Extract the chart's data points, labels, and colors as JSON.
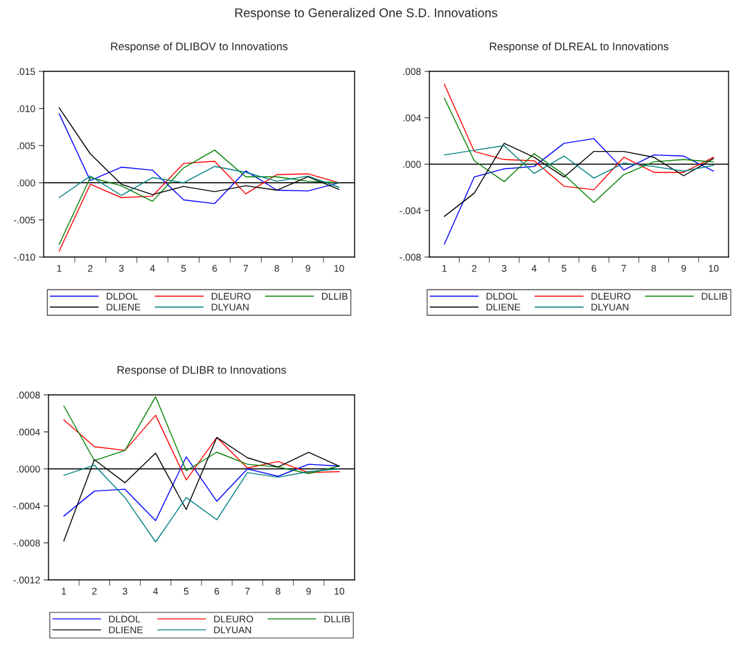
{
  "chart_data": [
    {
      "type": "line",
      "title": "Response of DLIBOV to Innovations",
      "categories": [
        "1",
        "2",
        "3",
        "4",
        "5",
        "6",
        "7",
        "8",
        "9",
        "10"
      ],
      "series": [
        {
          "name": "DLDOL",
          "color": "#0000ff",
          "values": [
            0.0093,
            0.0003,
            0.0021,
            0.0017,
            -0.0023,
            -0.0028,
            0.0016,
            -0.001,
            -0.0011,
            0.0
          ]
        },
        {
          "name": "DLEURO",
          "color": "#ff0000",
          "values": [
            -0.0092,
            -0.0002,
            -0.002,
            -0.0018,
            0.0026,
            0.0029,
            -0.0015,
            0.0011,
            0.0012,
            0.0
          ]
        },
        {
          "name": "DLLIB",
          "color": "#008000",
          "values": [
            -0.0083,
            0.0007,
            -0.0004,
            -0.0025,
            0.002,
            0.0044,
            0.0008,
            0.0008,
            0.0002,
            0.0
          ]
        },
        {
          "name": "DLIENE",
          "color": "#000000",
          "values": [
            0.0101,
            0.0039,
            -0.0002,
            -0.0016,
            -0.0005,
            -0.0012,
            -0.0004,
            -0.001,
            0.0008,
            -0.0009
          ]
        },
        {
          "name": "DLYUAN",
          "color": "#008080",
          "values": [
            -0.002,
            0.0009,
            -0.0017,
            0.0007,
            0.0,
            0.0022,
            0.0014,
            0.0002,
            0.0009,
            -0.0006
          ]
        }
      ],
      "ylim": [
        -0.01,
        0.015
      ],
      "yticks": [
        {
          "value": -0.01,
          "label": "-.010"
        },
        {
          "value": -0.005,
          "label": "-.005"
        },
        {
          "value": 0.0,
          "label": ".000"
        },
        {
          "value": 0.005,
          "label": ".005"
        },
        {
          "value": 0.01,
          "label": ".010"
        },
        {
          "value": 0.015,
          "label": ".015"
        }
      ],
      "ref_lines": [
        {
          "axis": "y",
          "value": 0.0,
          "color": "#000000"
        }
      ],
      "annotations": [
        "Response to Generalized One S.D. Innovations"
      ],
      "grid": false,
      "legend": "bottom",
      "marker": "none",
      "line_style": "solid"
    },
    {
      "type": "line",
      "title": "Response of DLREAL to Innovations",
      "categories": [
        "1",
        "2",
        "3",
        "4",
        "5",
        "6",
        "7",
        "8",
        "9",
        "10"
      ],
      "series": [
        {
          "name": "DLDOL",
          "color": "#0000ff",
          "values": [
            -0.0069,
            -0.0011,
            -0.0004,
            -0.0002,
            0.0018,
            0.0022,
            -0.0005,
            0.0008,
            0.0007,
            -0.0006
          ]
        },
        {
          "name": "DLEURO",
          "color": "#ff0000",
          "values": [
            0.0069,
            0.0011,
            0.0004,
            0.0003,
            -0.0019,
            -0.0022,
            0.0006,
            -0.0007,
            -0.0007,
            0.0006
          ]
        },
        {
          "name": "DLLIB",
          "color": "#008000",
          "values": [
            0.0057,
            0.0003,
            -0.0015,
            0.0009,
            -0.0009,
            -0.0033,
            -0.0009,
            0.0002,
            0.0004,
            0.0002
          ]
        },
        {
          "name": "DLIENE",
          "color": "#000000",
          "values": [
            -0.0045,
            -0.0025,
            0.0018,
            0.0006,
            -0.0011,
            0.0011,
            0.0011,
            0.0006,
            -0.001,
            0.0005
          ]
        },
        {
          "name": "DLYUAN",
          "color": "#008080",
          "values": [
            0.0008,
            0.0012,
            0.0016,
            -0.0008,
            0.0007,
            -0.0012,
            0.0001,
            -0.0002,
            -0.0006,
            -0.0001
          ]
        }
      ],
      "ylim": [
        -0.008,
        0.008
      ],
      "yticks": [
        {
          "value": -0.008,
          "label": "-.008"
        },
        {
          "value": -0.004,
          "label": "-.004"
        },
        {
          "value": 0.0,
          "label": ".000"
        },
        {
          "value": 0.004,
          "label": ".004"
        },
        {
          "value": 0.008,
          "label": ".008"
        }
      ],
      "ref_lines": [
        {
          "axis": "y",
          "value": 0.0,
          "color": "#000000"
        }
      ],
      "grid": false,
      "legend": "bottom",
      "marker": "none",
      "line_style": "solid"
    },
    {
      "type": "line",
      "title": "Response of DLIBR to Innovations",
      "categories": [
        "1",
        "2",
        "3",
        "4",
        "5",
        "6",
        "7",
        "8",
        "9",
        "10"
      ],
      "series": [
        {
          "name": "DLDOL",
          "color": "#0000ff",
          "values": [
            -0.00051,
            -0.00024,
            -0.00022,
            -0.00056,
            0.00013,
            -0.00035,
            0.0,
            -8e-05,
            5e-05,
            3e-05
          ]
        },
        {
          "name": "DLEURO",
          "color": "#ff0000",
          "values": [
            0.00053,
            0.00024,
            0.0002,
            0.00058,
            -0.00012,
            0.00034,
            1e-05,
            8e-05,
            -4e-05,
            -3e-05
          ]
        },
        {
          "name": "DLLIB",
          "color": "#008000",
          "values": [
            0.00068,
            9e-05,
            0.0002,
            0.00078,
            -2e-05,
            0.00018,
            5e-05,
            2e-05,
            -5e-05,
            3e-05
          ]
        },
        {
          "name": "DLIENE",
          "color": "#000000",
          "values": [
            -0.00078,
            0.0001,
            -0.00015,
            0.00017,
            -0.00044,
            0.00034,
            0.00012,
            2e-05,
            0.00018,
            3e-05
          ]
        },
        {
          "name": "DLYUAN",
          "color": "#008080",
          "values": [
            -7e-05,
            4e-05,
            -0.00031,
            -0.00079,
            -0.00031,
            -0.00055,
            -4e-05,
            -9e-05,
            -3e-05,
            0.0
          ]
        }
      ],
      "ylim": [
        -0.0012,
        0.0008
      ],
      "yticks": [
        {
          "value": -0.0012,
          "label": "-.0012"
        },
        {
          "value": -0.0008,
          "label": "-.0008"
        },
        {
          "value": -0.0004,
          "label": "-.0004"
        },
        {
          "value": 0.0,
          "label": ".0000"
        },
        {
          "value": 0.0004,
          "label": ".0004"
        },
        {
          "value": 0.0008,
          "label": ".0008"
        }
      ],
      "ref_lines": [
        {
          "axis": "y",
          "value": 0.0,
          "color": "#000000"
        }
      ],
      "grid": false,
      "legend": "bottom",
      "marker": "none",
      "line_style": "solid"
    }
  ]
}
